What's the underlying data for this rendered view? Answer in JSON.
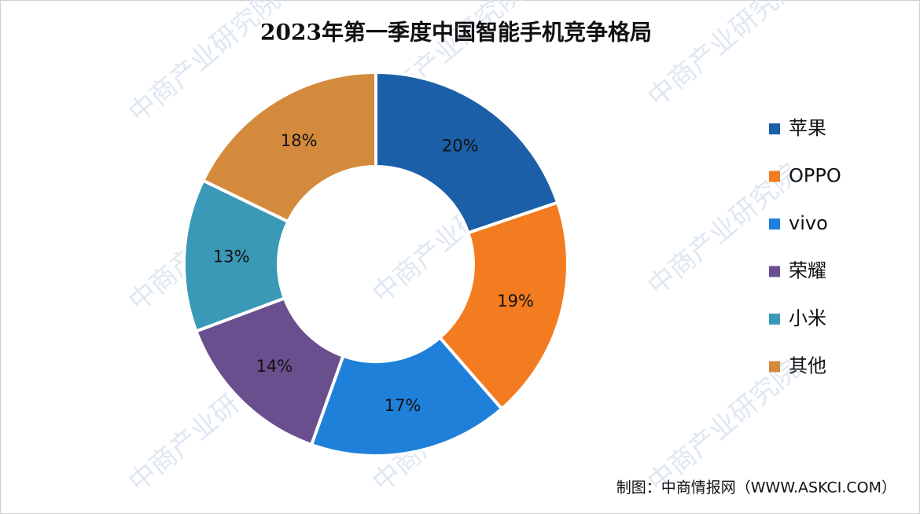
{
  "chart_data": {
    "type": "donut",
    "title": "2023年第一季度中国智能手机竞争格局",
    "categories": [
      "苹果",
      "OPPO",
      "vivo",
      "荣耀",
      "小米",
      "其他"
    ],
    "values": [
      20,
      19,
      17,
      14,
      13,
      18
    ],
    "value_labels": [
      "20%",
      "19%",
      "17%",
      "14%",
      "13%",
      "18%"
    ],
    "colors": [
      "#1b5fa8",
      "#f27c1f",
      "#1f80d9",
      "#6a4f8f",
      "#3b99b8",
      "#d38a3c"
    ],
    "legend": "right",
    "source": "制图：中商情报网（WWW.ASKCI.COM）",
    "watermark": "中商产业研究院"
  }
}
